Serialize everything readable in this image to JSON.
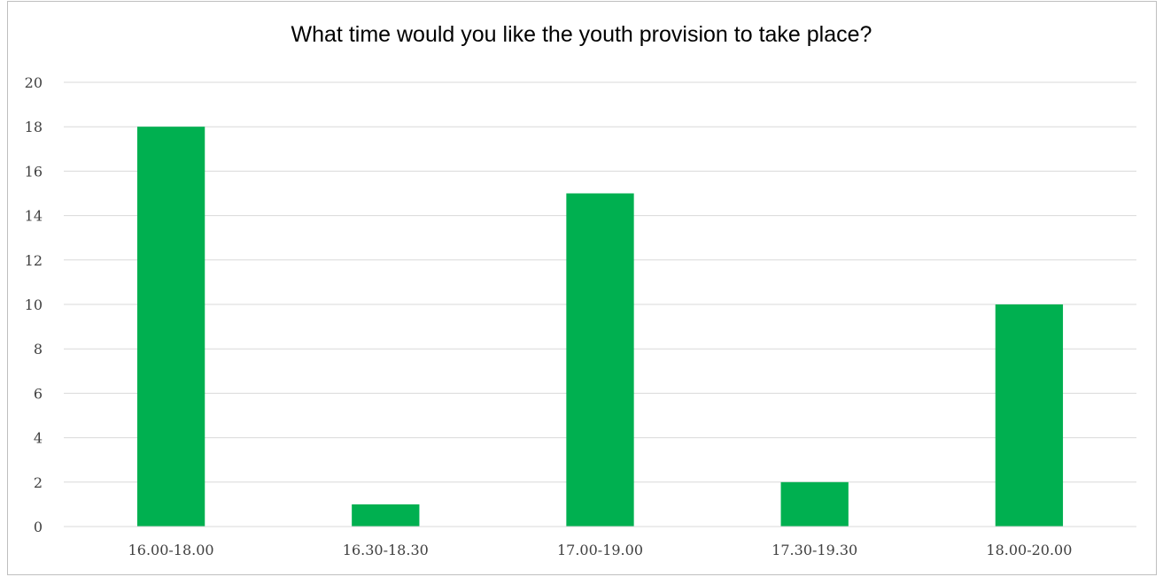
{
  "chart_data": {
    "type": "bar",
    "title": "What time would you like the youth provision to take place?",
    "categories": [
      "16.00-18.00",
      "16.30-18.30",
      "17.00-19.00",
      "17.30-19.30",
      "18.00-20.00"
    ],
    "values": [
      18,
      1,
      15,
      2,
      10
    ],
    "ylim": [
      0,
      20
    ],
    "yticks": [
      0,
      2,
      4,
      6,
      8,
      10,
      12,
      14,
      16,
      18,
      20
    ],
    "xlabel": "",
    "ylabel": "",
    "grid": true,
    "legend": "none",
    "bar_color": "#00b050",
    "grid_color": "#d9d9d9"
  }
}
